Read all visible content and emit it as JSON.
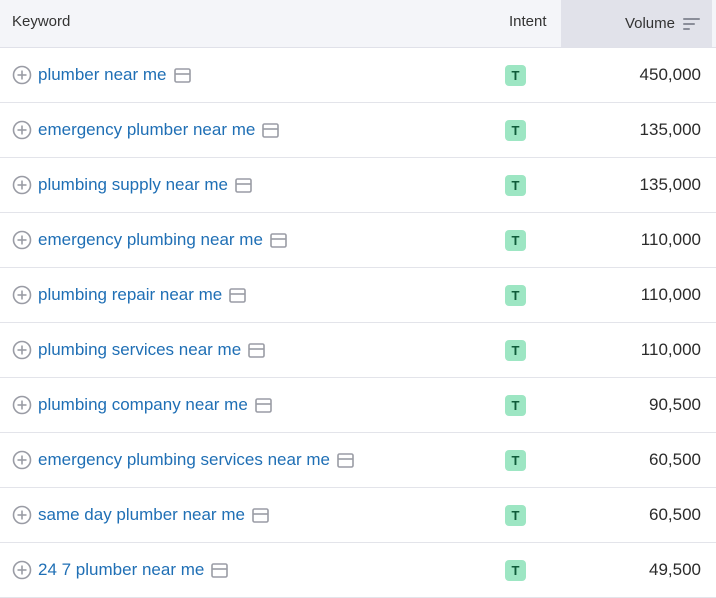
{
  "header": {
    "keyword": "Keyword",
    "intent": "Intent",
    "volume": "Volume"
  },
  "colors": {
    "link": "#1f6fb5",
    "intent_badge": "#9de6c3",
    "intent_text": "#0f5c3a",
    "header_bg": "#f4f5f9"
  },
  "icons": {
    "add": "plus-circle-icon",
    "serp": "serp-features-icon",
    "sort": "sort-descending-icon"
  },
  "rows": [
    {
      "keyword": "plumber near me",
      "intent": "T",
      "volume": "450,000"
    },
    {
      "keyword": "emergency plumber near me",
      "intent": "T",
      "volume": "135,000"
    },
    {
      "keyword": "plumbing supply near me",
      "intent": "T",
      "volume": "135,000"
    },
    {
      "keyword": "emergency plumbing near me",
      "intent": "T",
      "volume": "110,000"
    },
    {
      "keyword": "plumbing repair near me",
      "intent": "T",
      "volume": "110,000"
    },
    {
      "keyword": "plumbing services near me",
      "intent": "T",
      "volume": "110,000"
    },
    {
      "keyword": "plumbing company near me",
      "intent": "T",
      "volume": "90,500"
    },
    {
      "keyword": "emergency plumbing services near me",
      "intent": "T",
      "volume": "60,500"
    },
    {
      "keyword": "same day plumber near me",
      "intent": "T",
      "volume": "60,500"
    },
    {
      "keyword": "24 7 plumber near me",
      "intent": "T",
      "volume": "49,500"
    }
  ]
}
